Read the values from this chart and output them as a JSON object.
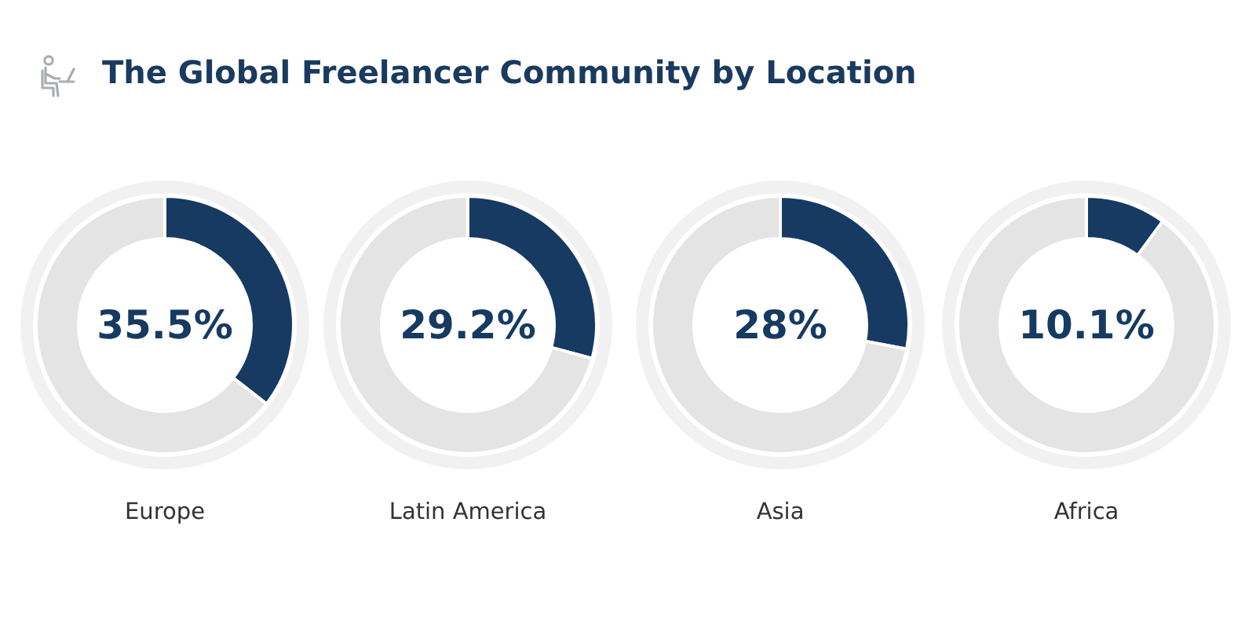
{
  "chart_data": [
    {
      "type": "other",
      "title": "The Global Freelancer Community by Location"
    },
    {
      "type": "donut",
      "title": "Europe",
      "categories": [
        null,
        null
      ],
      "values": [
        35.5,
        64.5
      ],
      "colors": [
        "#163a62",
        "#e4e4e4"
      ],
      "value_labels": [
        "35.5%",
        null
      ]
    },
    {
      "type": "donut",
      "title": "Latin America",
      "categories": [
        null,
        null
      ],
      "values": [
        29.2,
        70.8
      ],
      "colors": [
        "#163a62",
        "#e4e4e4"
      ],
      "value_labels": [
        "29.2%",
        null
      ]
    },
    {
      "type": "donut",
      "title": "Asia",
      "categories": [
        null,
        null
      ],
      "values": [
        28,
        72
      ],
      "colors": [
        "#163a62",
        "#e4e4e4"
      ],
      "value_labels": [
        "28%",
        null
      ]
    },
    {
      "type": "donut",
      "title": "Africa",
      "categories": [
        null,
        null
      ],
      "values": [
        10.1,
        89.9
      ],
      "colors": [
        "#163a62",
        "#e4e4e4"
      ],
      "value_labels": [
        "10.1%",
        null
      ]
    }
  ]
}
